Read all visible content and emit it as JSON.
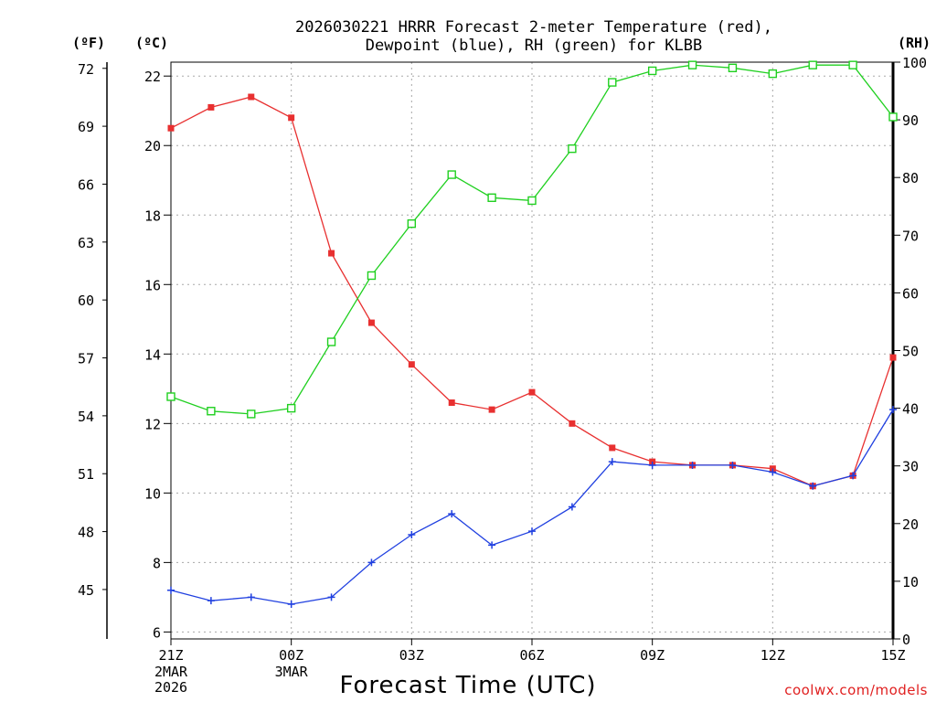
{
  "chart_data": {
    "type": "line",
    "title_line1": "2026030221 HRRR Forecast 2-meter Temperature (red),",
    "title_line2": "Dewpoint (blue), RH (green) for KLBB",
    "xlabel": "Forecast Time (UTC)",
    "credit": "coolwx.com/models",
    "units": {
      "f": "(ºF)",
      "c": "(ºC)",
      "rh": "(RH)"
    },
    "x_ticks": [
      {
        "hour": 0,
        "label": "21Z",
        "sub1": "2MAR",
        "sub2": "2026"
      },
      {
        "hour": 3,
        "label": "00Z",
        "sub1": "3MAR",
        "sub2": ""
      },
      {
        "hour": 6,
        "label": "03Z",
        "sub1": "",
        "sub2": ""
      },
      {
        "hour": 9,
        "label": "06Z",
        "sub1": "",
        "sub2": ""
      },
      {
        "hour": 12,
        "label": "09Z",
        "sub1": "",
        "sub2": ""
      },
      {
        "hour": 15,
        "label": "12Z",
        "sub1": "",
        "sub2": ""
      },
      {
        "hour": 18,
        "label": "15Z",
        "sub1": "",
        "sub2": ""
      }
    ],
    "x_range": [
      0,
      18
    ],
    "celsius_range": [
      5.8,
      22.4
    ],
    "celsius_ticks": [
      "6",
      "8",
      "10",
      "12",
      "14",
      "16",
      "18",
      "20",
      "22"
    ],
    "fahrenheit_ticks": [
      "45",
      "48",
      "51",
      "54",
      "57",
      "60",
      "63",
      "66",
      "69",
      "72"
    ],
    "rh_range": [
      0,
      100
    ],
    "rh_ticks": [
      "0",
      "10",
      "20",
      "30",
      "40",
      "50",
      "60",
      "70",
      "80",
      "90",
      "100"
    ],
    "series": [
      {
        "name": "Temperature",
        "unit": "C",
        "color": "#e83030",
        "marker": "filled-square",
        "values": [
          20.5,
          21.1,
          21.4,
          20.8,
          16.9,
          14.9,
          13.7,
          12.6,
          12.4,
          12.9,
          12.0,
          11.3,
          10.9,
          10.8,
          10.8,
          10.7,
          10.2,
          10.5,
          13.9
        ]
      },
      {
        "name": "Dewpoint",
        "unit": "C",
        "color": "#2040e0",
        "marker": "plus",
        "values": [
          7.2,
          6.9,
          7.0,
          6.8,
          7.0,
          8.0,
          8.8,
          9.4,
          8.5,
          8.9,
          9.6,
          10.9,
          10.8,
          10.8,
          10.8,
          10.6,
          10.2,
          10.5,
          12.4
        ]
      },
      {
        "name": "RH",
        "unit": "%",
        "color": "#20d020",
        "marker": "open-square",
        "values": [
          42.0,
          39.5,
          39.0,
          40.0,
          51.5,
          63.0,
          72.0,
          80.5,
          76.5,
          76.0,
          85.0,
          96.5,
          98.5,
          99.5,
          99.0,
          98.0,
          99.5,
          99.5,
          90.5
        ]
      }
    ]
  }
}
